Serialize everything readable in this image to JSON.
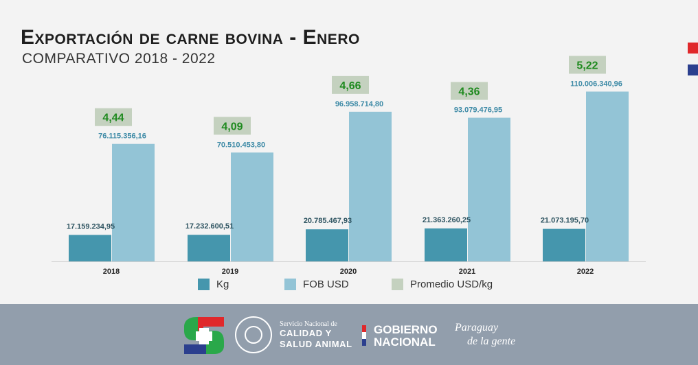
{
  "header": {
    "title": "Exportación de carne bovina - Enero",
    "subtitle": "COMPARATIVO 2018 - 2022"
  },
  "colors": {
    "kg": "#4596ad",
    "fob": "#93c4d6",
    "promedio": "#c4d1bf",
    "promedio_text": "#1f8a1f",
    "fob_label": "#3d8aa6",
    "kg_label": "#2d5360"
  },
  "chart_data": {
    "type": "bar",
    "categories": [
      "2018",
      "2019",
      "2020",
      "2021",
      "2022"
    ],
    "series": [
      {
        "name": "Kg",
        "values": [
          17159234.95,
          17232600.51,
          20785467.93,
          21363260.25,
          21073195.7
        ]
      },
      {
        "name": "FOB USD",
        "values": [
          76115356.16,
          70510453.8,
          96958714.8,
          93079476.95,
          110006340.96
        ]
      }
    ],
    "value_labels": {
      "kg": [
        "17.159.234,95",
        "17.232.600,51",
        "20.785.467,93",
        "21.363.260,25",
        "21.073.195,70"
      ],
      "fob": [
        "76.115.356,16",
        "70.510.453,80",
        "96.958.714,80",
        "93.079.476,95",
        "110.006.340,96"
      ]
    },
    "promedio": {
      "name": "Promedio USD/kg",
      "labels": [
        "4,44",
        "4,09",
        "4,66",
        "4,36",
        "5,22"
      ]
    },
    "ylim": [
      0,
      120000000
    ],
    "legend": [
      "Kg",
      "FOB USD",
      "Promedio USD/kg"
    ],
    "legend_position": "bottom",
    "grid": false
  },
  "footer": {
    "senacsa_small": "Servicio Nacional de",
    "senacsa_line1": "CALIDAD Y",
    "senacsa_line2": "SALUD ANIMAL",
    "gobierno_line1": "GOBIERNO",
    "gobierno_line2": "NACIONAL",
    "slogan_line1": "Paraguay",
    "slogan_line2": "de la gente",
    "seal_icon": "national-seal-icon",
    "logo_icon": "senacsa-logo-icon"
  }
}
